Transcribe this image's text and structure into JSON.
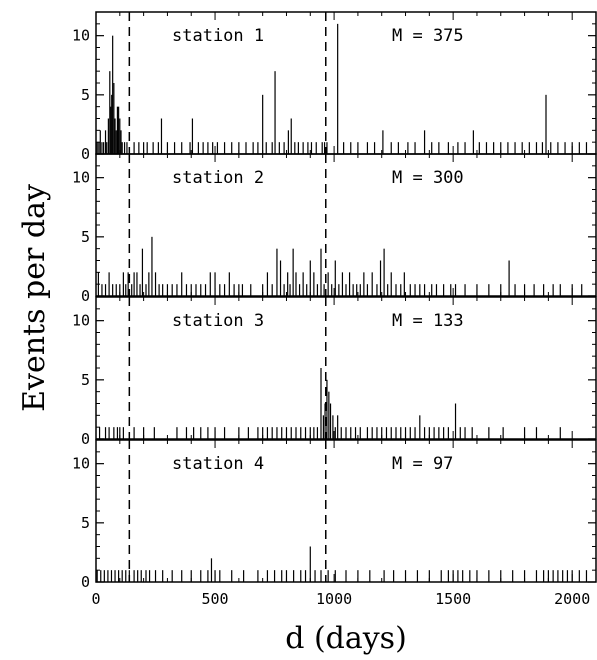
{
  "chart_data": {
    "type": "bar",
    "xlabel": "d (days)",
    "ylabel": "Events per day",
    "xlim": [
      0,
      2100
    ],
    "ylim": [
      0,
      12
    ],
    "x_ticks": [
      "0",
      "500",
      "1000",
      "1500",
      "2000"
    ],
    "y_ticks": [
      "0",
      "5",
      "10"
    ],
    "dashed_lines_x": [
      140,
      965
    ],
    "panels": [
      {
        "label": "station 1",
        "m_label": "M = 375",
        "events": [
          [
            5,
            1
          ],
          [
            12,
            1
          ],
          [
            18,
            2
          ],
          [
            25,
            1
          ],
          [
            32,
            1
          ],
          [
            40,
            2
          ],
          [
            45,
            1
          ],
          [
            52,
            3
          ],
          [
            58,
            7
          ],
          [
            62,
            4
          ],
          [
            66,
            5
          ],
          [
            70,
            10
          ],
          [
            75,
            6
          ],
          [
            80,
            3
          ],
          [
            85,
            2
          ],
          [
            90,
            4
          ],
          [
            95,
            4
          ],
          [
            100,
            3
          ],
          [
            105,
            2
          ],
          [
            110,
            1
          ],
          [
            120,
            1
          ],
          [
            130,
            1
          ],
          [
            160,
            1
          ],
          [
            180,
            1
          ],
          [
            200,
            1
          ],
          [
            215,
            1
          ],
          [
            240,
            1
          ],
          [
            262,
            1
          ],
          [
            275,
            3
          ],
          [
            300,
            1
          ],
          [
            330,
            1
          ],
          [
            360,
            1
          ],
          [
            395,
            1
          ],
          [
            405,
            3
          ],
          [
            430,
            1
          ],
          [
            450,
            1
          ],
          [
            470,
            1
          ],
          [
            490,
            1
          ],
          [
            510,
            1
          ],
          [
            540,
            1
          ],
          [
            570,
            1
          ],
          [
            600,
            1
          ],
          [
            630,
            1
          ],
          [
            660,
            1
          ],
          [
            680,
            1
          ],
          [
            700,
            5
          ],
          [
            715,
            1
          ],
          [
            740,
            1
          ],
          [
            752,
            7
          ],
          [
            770,
            1
          ],
          [
            790,
            1
          ],
          [
            808,
            2
          ],
          [
            820,
            3
          ],
          [
            835,
            1
          ],
          [
            850,
            1
          ],
          [
            870,
            1
          ],
          [
            890,
            1
          ],
          [
            905,
            1
          ],
          [
            925,
            1
          ],
          [
            950,
            1
          ],
          [
            960,
            1
          ],
          [
            970,
            1
          ],
          [
            1015,
            11
          ],
          [
            1040,
            1
          ],
          [
            1070,
            1
          ],
          [
            1100,
            1
          ],
          [
            1140,
            1
          ],
          [
            1170,
            1
          ],
          [
            1205,
            2
          ],
          [
            1240,
            1
          ],
          [
            1270,
            1
          ],
          [
            1310,
            1
          ],
          [
            1340,
            1
          ],
          [
            1380,
            2
          ],
          [
            1410,
            1
          ],
          [
            1440,
            1
          ],
          [
            1480,
            1
          ],
          [
            1520,
            1
          ],
          [
            1550,
            1
          ],
          [
            1585,
            2
          ],
          [
            1610,
            1
          ],
          [
            1640,
            1
          ],
          [
            1670,
            1
          ],
          [
            1700,
            1
          ],
          [
            1730,
            1
          ],
          [
            1760,
            1
          ],
          [
            1790,
            1
          ],
          [
            1820,
            1
          ],
          [
            1850,
            1
          ],
          [
            1875,
            1
          ],
          [
            1890,
            5
          ],
          [
            1910,
            1
          ],
          [
            1940,
            1
          ],
          [
            1970,
            1
          ],
          [
            2000,
            1
          ],
          [
            2030,
            1
          ],
          [
            2060,
            1
          ]
        ]
      },
      {
        "label": "station 2",
        "m_label": "M = 300",
        "events": [
          [
            10,
            2
          ],
          [
            25,
            1
          ],
          [
            40,
            1
          ],
          [
            55,
            2
          ],
          [
            70,
            1
          ],
          [
            85,
            1
          ],
          [
            100,
            1
          ],
          [
            115,
            2
          ],
          [
            125,
            1
          ],
          [
            135,
            2
          ],
          [
            150,
            1
          ],
          [
            160,
            2
          ],
          [
            172,
            2
          ],
          [
            185,
            1
          ],
          [
            195,
            4
          ],
          [
            210,
            1
          ],
          [
            222,
            2
          ],
          [
            235,
            5
          ],
          [
            250,
            2
          ],
          [
            265,
            1
          ],
          [
            280,
            1
          ],
          [
            300,
            1
          ],
          [
            320,
            1
          ],
          [
            340,
            1
          ],
          [
            360,
            2
          ],
          [
            380,
            1
          ],
          [
            400,
            1
          ],
          [
            420,
            1
          ],
          [
            440,
            1
          ],
          [
            460,
            1
          ],
          [
            480,
            2
          ],
          [
            500,
            2
          ],
          [
            520,
            1
          ],
          [
            540,
            1
          ],
          [
            560,
            2
          ],
          [
            580,
            1
          ],
          [
            600,
            1
          ],
          [
            615,
            1
          ],
          [
            650,
            1
          ],
          [
            700,
            1
          ],
          [
            720,
            2
          ],
          [
            740,
            1
          ],
          [
            760,
            4
          ],
          [
            775,
            3
          ],
          [
            790,
            1
          ],
          [
            805,
            2
          ],
          [
            815,
            1
          ],
          [
            828,
            4
          ],
          [
            840,
            2
          ],
          [
            855,
            1
          ],
          [
            870,
            2
          ],
          [
            885,
            1
          ],
          [
            900,
            3
          ],
          [
            915,
            2
          ],
          [
            930,
            1
          ],
          [
            945,
            4
          ],
          [
            958,
            1
          ],
          [
            975,
            2
          ],
          [
            990,
            1
          ],
          [
            1005,
            3
          ],
          [
            1020,
            1
          ],
          [
            1035,
            2
          ],
          [
            1050,
            1
          ],
          [
            1065,
            2
          ],
          [
            1080,
            1
          ],
          [
            1095,
            1
          ],
          [
            1110,
            1
          ],
          [
            1125,
            2
          ],
          [
            1140,
            1
          ],
          [
            1160,
            2
          ],
          [
            1180,
            1
          ],
          [
            1195,
            3
          ],
          [
            1210,
            4
          ],
          [
            1225,
            1
          ],
          [
            1240,
            2
          ],
          [
            1260,
            1
          ],
          [
            1280,
            1
          ],
          [
            1295,
            2
          ],
          [
            1320,
            1
          ],
          [
            1340,
            1
          ],
          [
            1360,
            1
          ],
          [
            1380,
            1
          ],
          [
            1410,
            1
          ],
          [
            1430,
            1
          ],
          [
            1460,
            1
          ],
          [
            1490,
            1
          ],
          [
            1510,
            1
          ],
          [
            1550,
            1
          ],
          [
            1600,
            1
          ],
          [
            1650,
            1
          ],
          [
            1700,
            1
          ],
          [
            1735,
            3
          ],
          [
            1760,
            1
          ],
          [
            1800,
            1
          ],
          [
            1840,
            1
          ],
          [
            1880,
            1
          ],
          [
            1920,
            1
          ],
          [
            1950,
            1
          ],
          [
            2000,
            1
          ],
          [
            2040,
            1
          ]
        ]
      },
      {
        "label": "station 3",
        "m_label": "M = 133",
        "events": [
          [
            15,
            1
          ],
          [
            40,
            1
          ],
          [
            55,
            1
          ],
          [
            75,
            1
          ],
          [
            90,
            1
          ],
          [
            100,
            1
          ],
          [
            115,
            1
          ],
          [
            160,
            1
          ],
          [
            200,
            1
          ],
          [
            245,
            1
          ],
          [
            340,
            1
          ],
          [
            380,
            1
          ],
          [
            410,
            1
          ],
          [
            440,
            1
          ],
          [
            470,
            1
          ],
          [
            500,
            1
          ],
          [
            540,
            1
          ],
          [
            600,
            1
          ],
          [
            640,
            1
          ],
          [
            680,
            1
          ],
          [
            700,
            1
          ],
          [
            720,
            1
          ],
          [
            740,
            1
          ],
          [
            760,
            1
          ],
          [
            780,
            1
          ],
          [
            800,
            1
          ],
          [
            820,
            1
          ],
          [
            840,
            1
          ],
          [
            860,
            1
          ],
          [
            880,
            1
          ],
          [
            900,
            1
          ],
          [
            915,
            1
          ],
          [
            930,
            1
          ],
          [
            945,
            6
          ],
          [
            955,
            2
          ],
          [
            962,
            3
          ],
          [
            970,
            5
          ],
          [
            978,
            4
          ],
          [
            985,
            3
          ],
          [
            995,
            2
          ],
          [
            1005,
            1
          ],
          [
            1015,
            2
          ],
          [
            1030,
            1
          ],
          [
            1050,
            1
          ],
          [
            1070,
            1
          ],
          [
            1090,
            1
          ],
          [
            1110,
            1
          ],
          [
            1140,
            1
          ],
          [
            1160,
            1
          ],
          [
            1180,
            1
          ],
          [
            1200,
            1
          ],
          [
            1220,
            1
          ],
          [
            1240,
            1
          ],
          [
            1260,
            1
          ],
          [
            1280,
            1
          ],
          [
            1300,
            1
          ],
          [
            1320,
            1
          ],
          [
            1340,
            1
          ],
          [
            1360,
            2
          ],
          [
            1380,
            1
          ],
          [
            1400,
            1
          ],
          [
            1420,
            1
          ],
          [
            1440,
            1
          ],
          [
            1460,
            1
          ],
          [
            1480,
            1
          ],
          [
            1510,
            3
          ],
          [
            1530,
            1
          ],
          [
            1550,
            1
          ],
          [
            1580,
            1
          ],
          [
            1650,
            1
          ],
          [
            1710,
            1
          ],
          [
            1800,
            1
          ],
          [
            1850,
            1
          ],
          [
            1950,
            1
          ]
        ]
      },
      {
        "label": "station 4",
        "m_label": "M = 97",
        "events": [
          [
            5,
            1
          ],
          [
            20,
            1
          ],
          [
            35,
            1
          ],
          [
            50,
            1
          ],
          [
            65,
            1
          ],
          [
            80,
            1
          ],
          [
            95,
            1
          ],
          [
            110,
            1
          ],
          [
            125,
            1
          ],
          [
            140,
            1
          ],
          [
            160,
            1
          ],
          [
            175,
            1
          ],
          [
            190,
            1
          ],
          [
            210,
            1
          ],
          [
            225,
            1
          ],
          [
            250,
            1
          ],
          [
            280,
            1
          ],
          [
            320,
            1
          ],
          [
            360,
            1
          ],
          [
            400,
            1
          ],
          [
            440,
            1
          ],
          [
            470,
            1
          ],
          [
            485,
            2
          ],
          [
            500,
            1
          ],
          [
            520,
            1
          ],
          [
            570,
            1
          ],
          [
            620,
            1
          ],
          [
            680,
            1
          ],
          [
            720,
            1
          ],
          [
            750,
            1
          ],
          [
            780,
            1
          ],
          [
            800,
            1
          ],
          [
            830,
            1
          ],
          [
            860,
            1
          ],
          [
            880,
            1
          ],
          [
            900,
            3
          ],
          [
            920,
            1
          ],
          [
            945,
            1
          ],
          [
            975,
            1
          ],
          [
            1005,
            1
          ],
          [
            1050,
            1
          ],
          [
            1100,
            1
          ],
          [
            1150,
            1
          ],
          [
            1210,
            1
          ],
          [
            1250,
            1
          ],
          [
            1300,
            1
          ],
          [
            1350,
            1
          ],
          [
            1400,
            1
          ],
          [
            1450,
            1
          ],
          [
            1480,
            1
          ],
          [
            1500,
            1
          ],
          [
            1520,
            1
          ],
          [
            1540,
            1
          ],
          [
            1570,
            1
          ],
          [
            1600,
            1
          ],
          [
            1650,
            1
          ],
          [
            1700,
            1
          ],
          [
            1750,
            1
          ],
          [
            1800,
            1
          ],
          [
            1850,
            1
          ],
          [
            1880,
            1
          ],
          [
            1900,
            1
          ],
          [
            1920,
            1
          ],
          [
            1940,
            1
          ],
          [
            1960,
            1
          ],
          [
            1980,
            1
          ],
          [
            2000,
            1
          ],
          [
            2030,
            1
          ],
          [
            2060,
            1
          ]
        ]
      }
    ]
  }
}
